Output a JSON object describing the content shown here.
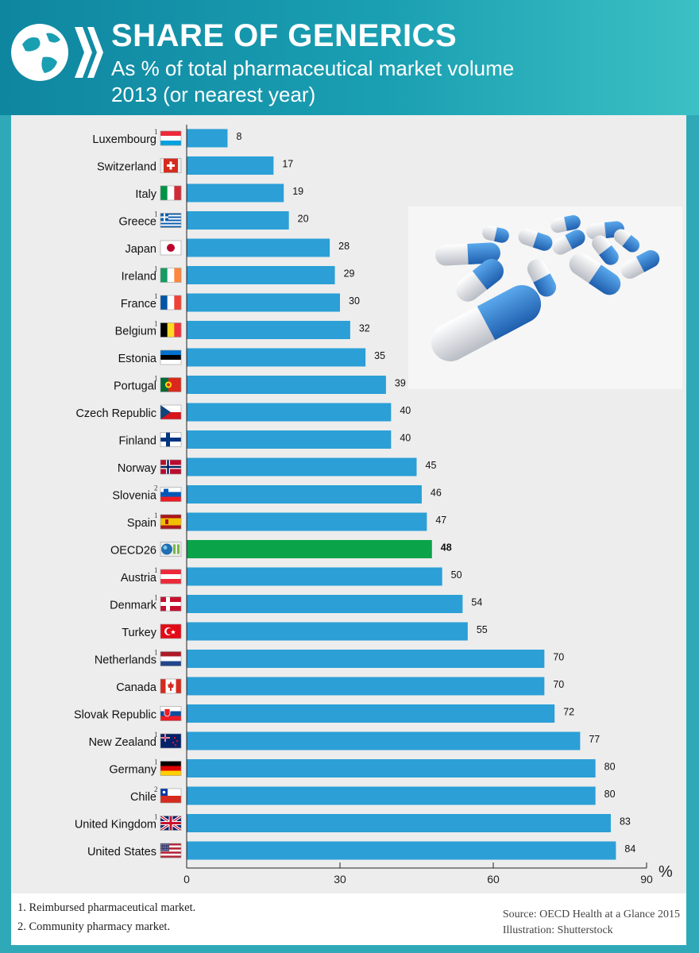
{
  "header": {
    "title": "SHARE OF GENERICS",
    "subtitle_line1": "As % of total pharmaceutical market volume",
    "subtitle_line2": "2013 (or nearest year)"
  },
  "colors": {
    "bar": "#2b9fd6",
    "highlight_bar": "#0aa34a",
    "header_bg": "#1a9fb2",
    "panel_bg": "#ededed"
  },
  "chart_data": {
    "type": "bar",
    "orientation": "horizontal",
    "unit_label": "%",
    "xlim": [
      0,
      90
    ],
    "xticks": [
      "0",
      "30",
      "60",
      "90"
    ],
    "grid": false,
    "categories": [
      "Luxembourg",
      "Switzerland",
      "Italy",
      "Greece",
      "Japan",
      "Ireland",
      "France",
      "Belgium",
      "Estonia",
      "Portugal",
      "Czech Republic",
      "Finland",
      "Norway",
      "Slovenia",
      "Spain",
      "OECD26",
      "Austria",
      "Denmark",
      "Turkey",
      "Netherlands",
      "Canada",
      "Slovak Republic",
      "New Zealand",
      "Germany",
      "Chile",
      "United Kingdom",
      "United States"
    ],
    "values": [
      8,
      17,
      19,
      20,
      28,
      29,
      30,
      32,
      35,
      39,
      40,
      40,
      45,
      46,
      47,
      48,
      50,
      54,
      55,
      70,
      70,
      72,
      77,
      80,
      80,
      83,
      84
    ],
    "value_labels": [
      "8",
      "17",
      "19",
      "20",
      "28",
      "29",
      "30",
      "32",
      "35",
      "39",
      "40",
      "40",
      "45",
      "46",
      "47",
      "48",
      "50",
      "54",
      "55",
      "70",
      "70",
      "72",
      "77",
      "80",
      "80",
      "83",
      "84"
    ],
    "footnote_marks": [
      "1",
      "",
      "",
      "1",
      "",
      "1",
      "1",
      "1",
      "",
      "1",
      "",
      "",
      "",
      "2",
      "1",
      "",
      "1",
      "1",
      "",
      "1",
      "",
      "",
      "1",
      "1",
      "2",
      "1",
      ""
    ],
    "flags": [
      "luxembourg-flag",
      "switzerland-flag",
      "italy-flag",
      "greece-flag",
      "japan-flag",
      "ireland-flag",
      "france-flag",
      "belgium-flag",
      "estonia-flag",
      "portugal-flag",
      "czech-republic-flag",
      "finland-flag",
      "norway-flag",
      "slovenia-flag",
      "spain-flag",
      "oecd-logo-icon",
      "austria-flag",
      "denmark-flag",
      "turkey-flag",
      "netherlands-flag",
      "canada-flag",
      "slovak-republic-flag",
      "new-zealand-flag",
      "germany-flag",
      "chile-flag",
      "united-kingdom-flag",
      "united-states-flag"
    ],
    "highlight_category": "OECD26"
  },
  "footnotes": {
    "note1": "1. Reimbursed pharmaceutical market.",
    "note2": "2. Community pharmacy market."
  },
  "source": {
    "line1": "Source: OECD Health at a Glance 2015",
    "line2": "Illustration: Shutterstock"
  },
  "illustration": {
    "subject": "pills-capsules-illustration"
  }
}
